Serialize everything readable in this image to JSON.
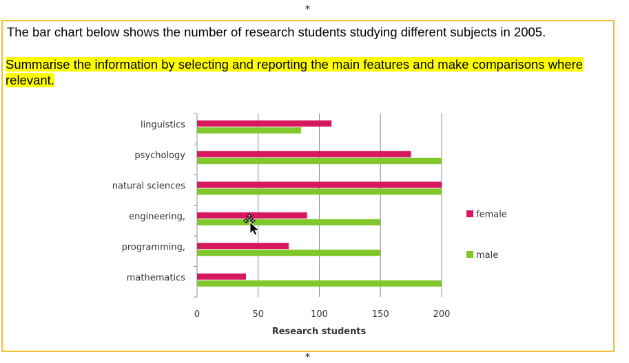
{
  "header": {
    "star_top": "*",
    "star_bottom": "*",
    "prompt": "The bar chart below shows the number of research students studying different subjects in 2005.",
    "task": "Summarise the information by selecting and reporting the main features and make comparisons where relevant."
  },
  "colors": {
    "female": "#d6195f",
    "male": "#80c72b",
    "highlight": "#ffff00",
    "frame": "#f1c232"
  },
  "chart_data": {
    "type": "bar",
    "orientation": "horizontal",
    "title": "",
    "xlabel": "Research students",
    "ylabel": "",
    "xlim": [
      0,
      200
    ],
    "x_ticks": [
      "0",
      "50",
      "100",
      "150",
      "200"
    ],
    "grid": "vertical gridlines on",
    "legend_position": "right",
    "categories": [
      "linguistics",
      "psychology",
      "natural sciences",
      "engineering,",
      "programming,",
      "mathematics"
    ],
    "series": [
      {
        "name": "female",
        "values": [
          110,
          175,
          200,
          90,
          75,
          40
        ]
      },
      {
        "name": "male",
        "values": [
          85,
          200,
          200,
          150,
          150,
          200
        ]
      }
    ]
  }
}
